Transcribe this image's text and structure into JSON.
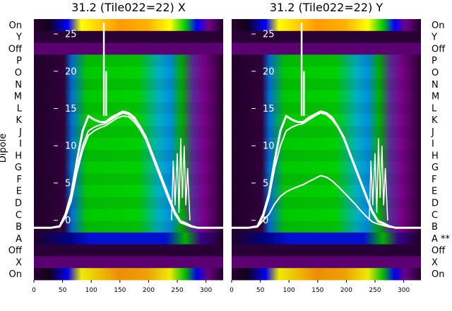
{
  "chart_data": [
    {
      "type": "heatmap",
      "title": "31.2 (Tile022=22) X",
      "ylabel": "Dipole",
      "row_labels": [
        "On",
        "Y",
        "Off",
        "P",
        "O",
        "N",
        "M",
        "L",
        "K",
        "J",
        "I",
        "H",
        "G",
        "F",
        "E",
        "D",
        "C",
        "B",
        "A",
        "Off",
        "X",
        "On"
      ],
      "x_ticks": [
        0,
        50,
        100,
        150,
        200,
        250,
        300
      ],
      "xlim": [
        0,
        330
      ],
      "y_ticks": [
        0,
        5,
        10,
        15,
        20,
        25
      ],
      "ylim": [
        -8,
        27
      ],
      "series": [
        {
          "x": [
            0,
            30,
            45,
            55,
            65,
            75,
            85,
            95,
            105,
            115,
            125,
            135,
            145,
            155,
            165,
            175,
            185,
            195,
            205,
            215,
            225,
            235,
            245,
            255,
            265,
            275,
            285,
            295,
            310,
            330
          ],
          "y": [
            -1,
            -1,
            -0.8,
            0.5,
            3,
            7,
            10,
            12,
            12.5,
            12.8,
            13,
            13.5,
            14,
            14.4,
            14.2,
            13.5,
            12.5,
            11,
            9,
            7,
            5,
            3,
            1,
            -0.2,
            -0.5,
            -0.8,
            -1,
            -1,
            -1,
            -1
          ]
        },
        {
          "x": [
            0,
            30,
            45,
            55,
            65,
            75,
            85,
            95,
            105,
            115,
            125,
            135,
            145,
            155,
            165,
            175,
            185,
            195,
            205,
            215,
            225,
            235,
            245,
            255,
            265,
            275,
            285,
            295,
            310,
            330
          ],
          "y": [
            -1,
            -1,
            -0.8,
            0.8,
            3.5,
            8,
            12,
            14,
            13.5,
            13.2,
            13.2,
            13.8,
            14.2,
            14.6,
            14.4,
            13.8,
            12.6,
            11.2,
            9.2,
            7.2,
            5.2,
            3.2,
            1.2,
            -0.1,
            -0.4,
            -0.8,
            -1,
            -1,
            -1,
            -1
          ]
        },
        {
          "x": [
            0,
            30,
            45,
            55,
            65,
            75,
            85,
            95,
            105,
            115,
            125,
            135,
            145,
            155,
            165,
            175,
            185,
            195,
            205,
            215,
            225,
            235,
            245,
            255,
            265,
            275,
            285,
            295,
            310,
            330
          ],
          "y": [
            -1,
            -1,
            -0.9,
            0.4,
            2.6,
            6.4,
            9.4,
            11.4,
            12,
            12.4,
            12.7,
            13.2,
            13.7,
            14,
            13.9,
            13.2,
            12.2,
            10.8,
            8.8,
            6.8,
            4.8,
            2.8,
            0.9,
            -0.3,
            -0.6,
            -0.9,
            -1,
            -1,
            -1,
            -1
          ]
        }
      ],
      "spikes": [
        {
          "x": 122,
          "y_top": 26.5
        },
        {
          "x": 126,
          "y_top": 20
        }
      ]
    },
    {
      "type": "heatmap",
      "title": "31.2 (Tile022=22) Y",
      "row_labels": [
        "On",
        "Y",
        "Off",
        "P",
        "O",
        "N",
        "M",
        "L",
        "K",
        "J",
        "I",
        "H",
        "G",
        "F",
        "E",
        "D",
        "C",
        "B",
        "A **",
        "Off",
        "X",
        "On"
      ],
      "x_ticks": [
        0,
        50,
        100,
        150,
        200,
        250,
        300
      ],
      "xlim": [
        0,
        330
      ],
      "y_ticks": [
        0,
        5,
        10,
        15,
        20,
        25
      ],
      "ylim": [
        -8,
        27
      ],
      "series": [
        {
          "x": [
            0,
            30,
            45,
            55,
            65,
            75,
            85,
            95,
            105,
            115,
            125,
            135,
            145,
            155,
            165,
            175,
            185,
            195,
            205,
            215,
            225,
            235,
            245,
            255,
            265,
            275,
            285,
            295,
            310,
            330
          ],
          "y": [
            -1,
            -1,
            -0.8,
            0.5,
            3,
            7,
            10,
            12,
            12.5,
            12.8,
            13,
            13.5,
            14,
            14.4,
            14.2,
            13.5,
            12.5,
            11,
            9,
            7,
            5,
            3,
            1,
            -0.2,
            -0.5,
            -0.8,
            -1,
            -1,
            -1,
            -1
          ]
        },
        {
          "x": [
            0,
            30,
            45,
            55,
            65,
            75,
            85,
            95,
            105,
            115,
            125,
            135,
            145,
            155,
            165,
            175,
            185,
            195,
            205,
            215,
            225,
            235,
            245,
            255,
            265,
            275,
            285,
            295,
            310,
            330
          ],
          "y": [
            -1,
            -1,
            -0.8,
            0.8,
            3.5,
            8,
            12,
            14,
            13.5,
            13.2,
            13.2,
            13.8,
            14.2,
            14.6,
            14.4,
            13.8,
            12.6,
            11.2,
            9.2,
            7.2,
            5.2,
            3.2,
            1.2,
            -0.1,
            -0.4,
            -0.8,
            -1,
            -1,
            -1,
            -1
          ]
        },
        {
          "x": [
            0,
            30,
            45,
            55,
            65,
            75,
            85,
            95,
            105,
            115,
            125,
            135,
            145,
            155,
            165,
            175,
            185,
            195,
            205,
            215,
            225,
            235,
            245,
            255,
            265,
            275,
            285,
            295,
            310,
            330
          ],
          "y": [
            -1,
            -1,
            -0.9,
            0,
            0.8,
            2.2,
            3.2,
            3.8,
            4.2,
            4.5,
            4.8,
            5.2,
            5.6,
            6,
            5.8,
            5.3,
            4.6,
            3.8,
            3,
            2.2,
            1.3,
            0.5,
            -0.2,
            -0.5,
            -0.7,
            -0.9,
            -1,
            -1,
            -1,
            -1
          ]
        }
      ],
      "spikes": [
        {
          "x": 122,
          "y_top": 26.5
        },
        {
          "x": 126,
          "y_top": 20
        }
      ]
    }
  ]
}
